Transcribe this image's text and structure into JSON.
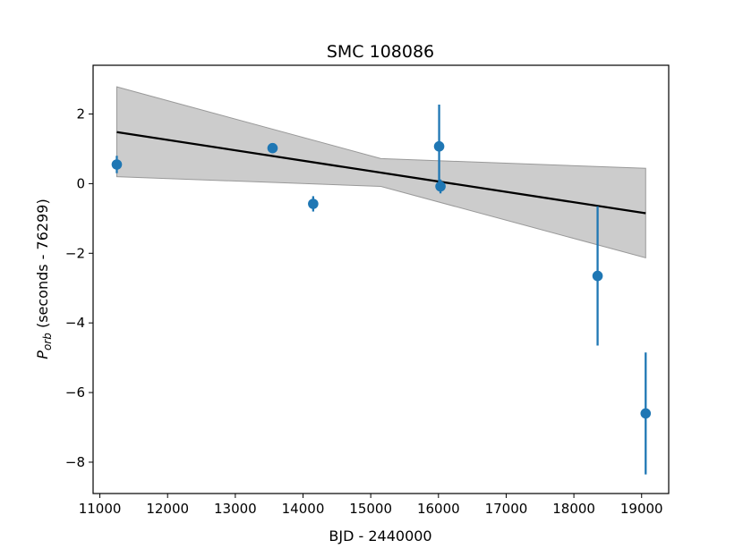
{
  "chart_data": {
    "type": "scatter",
    "title": "SMC 108086",
    "xlabel": "BJD - 2440000",
    "ylabel": {
      "base": "P",
      "subscript": "orb",
      "rest": " (seconds - 76299)"
    },
    "xlim": [
      10900,
      19400
    ],
    "ylim": [
      -8.9,
      3.4
    ],
    "x_ticks": [
      11000,
      12000,
      13000,
      14000,
      15000,
      16000,
      17000,
      18000,
      19000
    ],
    "y_ticks": [
      -8,
      -6,
      -4,
      -2,
      0,
      2
    ],
    "y_tick_labels": [
      "−8",
      "−6",
      "−4",
      "−2",
      "0",
      "2"
    ],
    "grid": false,
    "points": [
      {
        "x": 11250,
        "y": 0.55,
        "yerr": 0.25
      },
      {
        "x": 13550,
        "y": 1.02,
        "yerr": 0.05
      },
      {
        "x": 14150,
        "y": -0.58,
        "yerr": 0.22
      },
      {
        "x": 16010,
        "y": 1.07,
        "yerr": 1.2
      },
      {
        "x": 16030,
        "y": -0.08,
        "yerr": 0.2
      },
      {
        "x": 18350,
        "y": -2.65,
        "yerr": 2.0
      },
      {
        "x": 19060,
        "y": -6.6,
        "yerr": 1.75
      }
    ],
    "fit_line": [
      {
        "x": 11250,
        "y": 1.48
      },
      {
        "x": 19060,
        "y": -0.85
      }
    ],
    "confidence_band": {
      "upper": [
        {
          "x": 11250,
          "y": 2.78
        },
        {
          "x": 15150,
          "y": 0.72
        },
        {
          "x": 19060,
          "y": 0.44
        }
      ],
      "lower": [
        {
          "x": 11250,
          "y": 0.2
        },
        {
          "x": 15150,
          "y": -0.08
        },
        {
          "x": 19060,
          "y": -2.13
        }
      ]
    },
    "colors": {
      "points": "#1f77b4",
      "fit_line": "#000000",
      "band_fill": "#cccccc",
      "band_edge": "#999999"
    }
  }
}
